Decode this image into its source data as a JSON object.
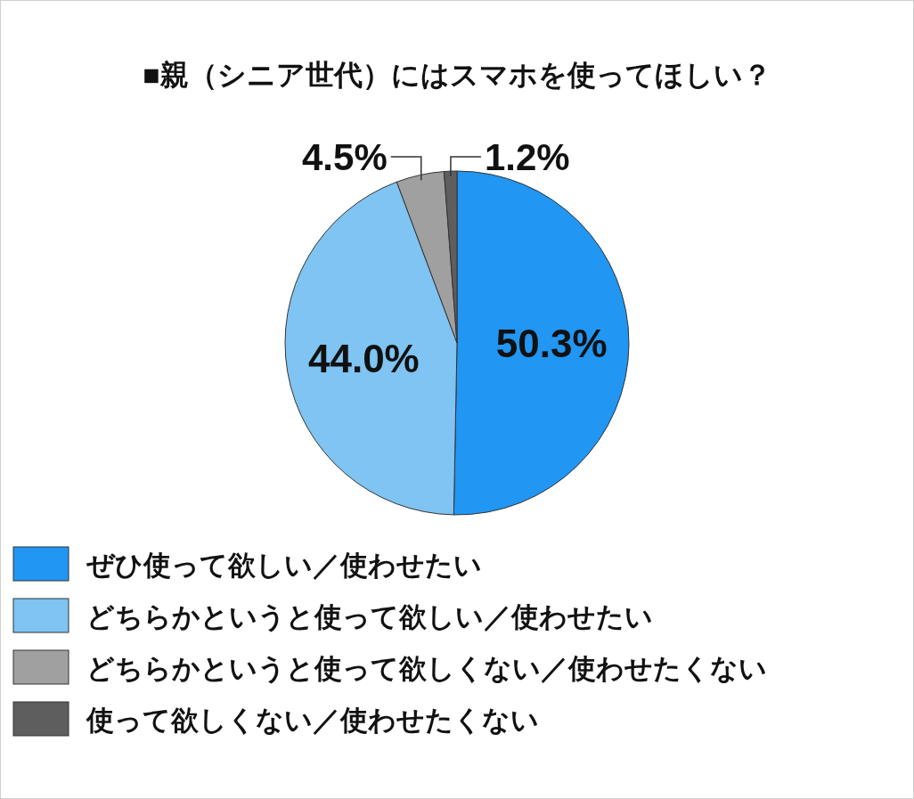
{
  "chart_data": {
    "type": "pie",
    "title": "■親（シニア世代）にはスマホを使ってほしい？",
    "categories": [
      "ぜひ使って欲しい／使わせたい",
      "どちらかというと使って欲しい／使わせたい",
      "どちらかというと使って欲しくない／使わせたくない",
      "使って欲しくない／使わせたくない"
    ],
    "values": [
      50.3,
      44.0,
      4.5,
      1.2
    ],
    "colors": [
      "#2196f3",
      "#7fc4f2",
      "#a0a0a0",
      "#5e5e5e"
    ],
    "value_labels": [
      "50.3%",
      "44.0%",
      "4.5%",
      "1.2%"
    ],
    "legend": "bottom"
  }
}
